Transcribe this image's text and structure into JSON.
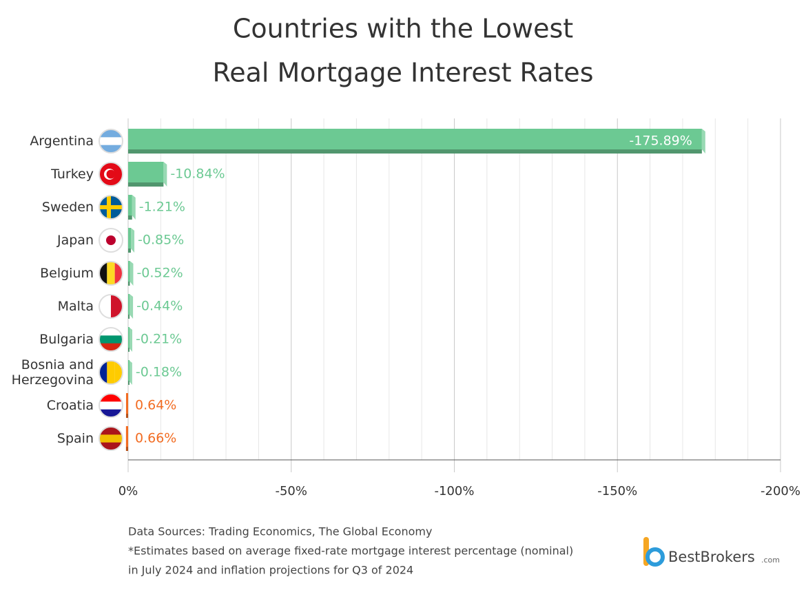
{
  "chart_data": {
    "type": "bar",
    "orientation": "horizontal",
    "title": [
      "Countries with the Lowest",
      "Real Mortgage Interest Rates"
    ],
    "categories": [
      "Argentina",
      "Turkey",
      "Sweden",
      "Japan",
      "Belgium",
      "Malta",
      "Bulgaria",
      "Bosnia and Herzegovina",
      "Croatia",
      "Spain"
    ],
    "values": [
      -175.89,
      -10.84,
      -1.21,
      -0.85,
      -0.52,
      -0.44,
      -0.21,
      -0.18,
      0.64,
      0.66
    ],
    "value_labels": [
      "-175.89%",
      "-10.84%",
      "-1.21%",
      "-0.85%",
      "-0.52%",
      "-0.44%",
      "-0.21%",
      "-0.18%",
      "0.64%",
      "0.66%"
    ],
    "negative_color": "#6cc993",
    "positive_color": "#f26c22",
    "xlim": [
      0,
      -200
    ],
    "xticks": [
      {
        "value": 0,
        "label": "0%"
      },
      {
        "value": -50,
        "label": "-50%"
      },
      {
        "value": -100,
        "label": "-100%"
      },
      {
        "value": -150,
        "label": "-150%"
      },
      {
        "value": -200,
        "label": "-200%"
      }
    ],
    "xminor": [
      -10,
      -20,
      -30,
      -40,
      -60,
      -70,
      -80,
      -90,
      -110,
      -120,
      -130,
      -140,
      -160,
      -170,
      -180,
      -190
    ],
    "grid": true,
    "notes": [
      "Data Sources: Trading Economics, The Global Economy",
      "*Estimates based on average fixed-rate mortgage interest percentage (nominal)",
      "in July 2024 and inflation projections for Q3 of 2024"
    ],
    "brand": {
      "name": "BestBrokers",
      "suffix": ".com"
    }
  }
}
